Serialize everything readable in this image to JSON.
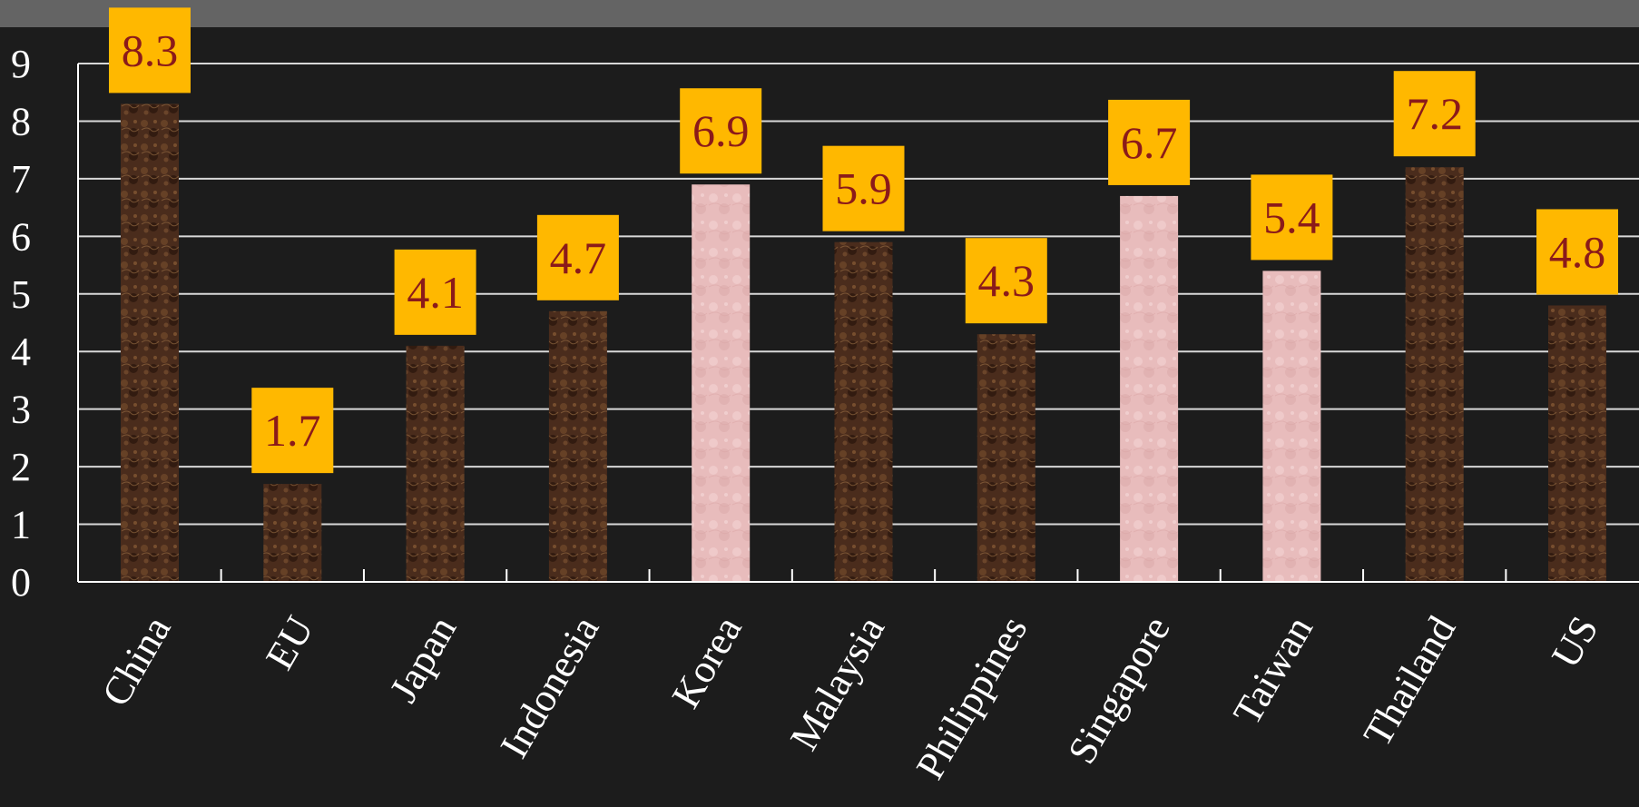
{
  "chart_data": {
    "type": "bar",
    "title": "",
    "xlabel": "",
    "ylabel": "",
    "ylim": [
      0,
      9
    ],
    "yticks": [
      "0",
      "1",
      "2",
      "3",
      "4",
      "5",
      "6",
      "7",
      "8",
      "9"
    ],
    "grid": true,
    "categories": [
      "China",
      "EU",
      "Japan",
      "Indonesia",
      "Korea",
      "Malaysia",
      "Philippines",
      "Singapore",
      "Taiwan",
      "Thailand",
      "US"
    ],
    "values": [
      8.3,
      1.7,
      4.1,
      4.7,
      6.9,
      5.9,
      4.3,
      6.7,
      5.4,
      7.2,
      4.8
    ],
    "labels": [
      "8.3",
      "1.7",
      "4.1",
      "4.7",
      "6.9",
      "5.9",
      "4.3",
      "6.7",
      "5.4",
      "7.2",
      "4.8"
    ],
    "bar_styles": [
      "dark",
      "dark",
      "dark",
      "dark",
      "light",
      "dark",
      "dark",
      "light",
      "light",
      "dark",
      "dark"
    ],
    "colors": {
      "background": "#1c1c1c",
      "top_band": "#646464",
      "grid": "#d8d8d8",
      "axis": "#ffffff",
      "bar_dark": "#4a2c1c",
      "bar_light": "#e8bcbc",
      "label_box": "#ffb800",
      "label_text": "#8b1a1a",
      "text": "#ffffff"
    }
  }
}
